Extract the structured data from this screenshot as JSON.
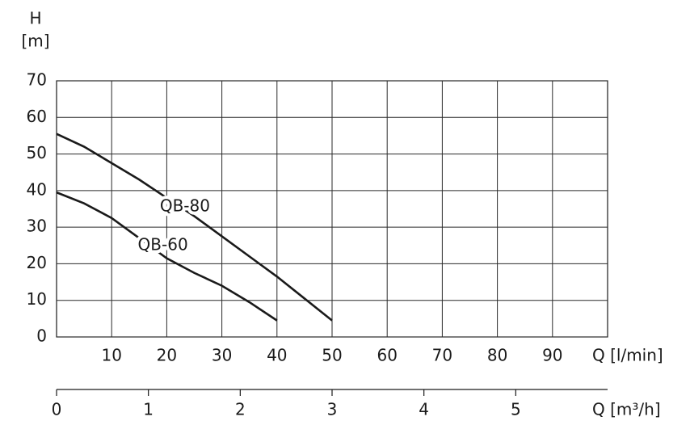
{
  "chart_data": {
    "type": "line",
    "ylabel": "H",
    "yunit": "[m]",
    "xlabel": "Q [l/min]",
    "x2label": "Q [m³/h]",
    "xlim": [
      0,
      100
    ],
    "xticks": [
      10,
      20,
      30,
      40,
      50,
      60,
      70,
      80,
      90
    ],
    "ylim": [
      0,
      70
    ],
    "yticks": [
      0,
      10,
      20,
      30,
      40,
      50,
      60,
      70
    ],
    "x2lim": [
      0,
      6
    ],
    "x2ticks": [
      0,
      1,
      2,
      3,
      4,
      5
    ],
    "grid": true,
    "series": [
      {
        "name": "QB-80",
        "color": "#1a1a1a",
        "x": [
          0,
          5,
          10,
          15,
          20,
          25,
          30,
          35,
          40,
          45,
          50
        ],
        "values": [
          55.5,
          52,
          47.5,
          43,
          38,
          33,
          27.5,
          22,
          16.5,
          10.5,
          4.5
        ]
      },
      {
        "name": "QB-60",
        "color": "#1a1a1a",
        "x": [
          0,
          5,
          10,
          15,
          20,
          25,
          30,
          35,
          40
        ],
        "values": [
          39.5,
          36.5,
          32.5,
          27,
          21.5,
          17.5,
          14,
          9.5,
          4.5
        ]
      }
    ]
  }
}
